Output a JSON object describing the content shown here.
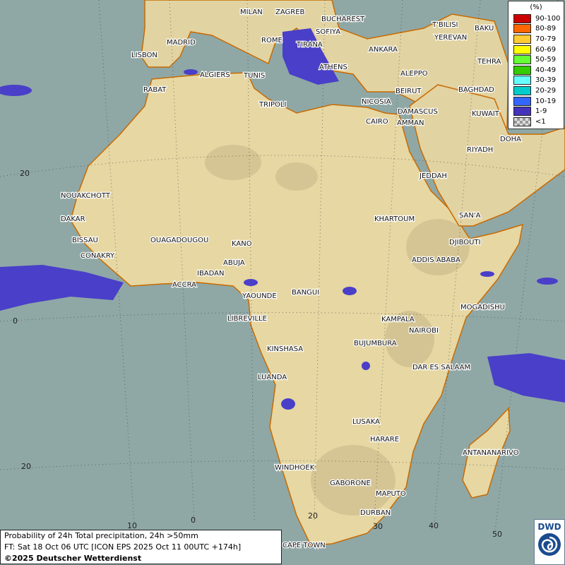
{
  "legend": {
    "unit": "(%)",
    "items": [
      {
        "label": "90-100",
        "color": "#cc0000"
      },
      {
        "label": "80-89",
        "color": "#ff6600"
      },
      {
        "label": "70-79",
        "color": "#ffcc33"
      },
      {
        "label": "60-69",
        "color": "#ffff00"
      },
      {
        "label": "50-59",
        "color": "#66ff33"
      },
      {
        "label": "40-49",
        "color": "#33cc00"
      },
      {
        "label": "30-39",
        "color": "#66ffff"
      },
      {
        "label": "20-29",
        "color": "#00cccc"
      },
      {
        "label": "10-19",
        "color": "#3366ff"
      },
      {
        "label": "1-9",
        "color": "#4433bb"
      },
      {
        "label": "<1",
        "color": "checkered-gray"
      }
    ]
  },
  "caption": {
    "line1": "Probability of 24h Total precipitation, 24h >50mm",
    "line2": "FT: Sat 18 Oct 06 UTC [ICON EPS 2025 Oct 11 00UTC +174h]",
    "line3": "©2025 Deutscher Wetterdienst"
  },
  "logo": {
    "text": "DWD"
  },
  "grid_labels": {
    "lat": [
      "20",
      "0",
      "20"
    ],
    "lon": [
      "10",
      "0",
      "20",
      "30",
      "40",
      "50"
    ]
  },
  "cities": [
    "MILAN",
    "ZAGREB",
    "BUCHAREST",
    "T'BILISI",
    "BAKU",
    "YEREVAN",
    "TEHRA",
    "MADRID",
    "ROME",
    "SOFIYA",
    "LISBON",
    "TIRANA",
    "ANKARA",
    "ALGIERS",
    "TUNIS",
    "ATHENS",
    "RABAT",
    "NICOSIA",
    "ALEPPO",
    "BAGHDAD",
    "BEIRUT",
    "DAMASCUS",
    "AMMAN",
    "TRIPOLI",
    "CAIRO",
    "KUWAIT",
    "DOHA",
    "RIYADH",
    "JEDDAH",
    "NOUAKCHOTT",
    "DAKAR",
    "KHARTOUM",
    "SAN'A",
    "BISSAU",
    "OUAGADOUGOU",
    "KANO",
    "DJIBOUTI",
    "CONAKRY",
    "ABUJA",
    "ADDIS ABABA",
    "IBADAN",
    "ACCRA",
    "YAOUNDE",
    "BANGUI",
    "MOGADISHU",
    "LIBREVILLE",
    "KAMPALA",
    "NAIROBI",
    "KINSHASA",
    "BUJUMBURA",
    "DAR ES SALAAM",
    "LUANDA",
    "LUSAKA",
    "HARARE",
    "ANTANANARIVO",
    "WINDHOEK",
    "GABORONE",
    "MAPUTO",
    "DURBAN",
    "CAPE TOWN"
  ],
  "colors": {
    "sea": "#8fa8a6",
    "land": "#e6d7a3",
    "precip": "#4a3fc8",
    "coast": "#c86a00"
  }
}
